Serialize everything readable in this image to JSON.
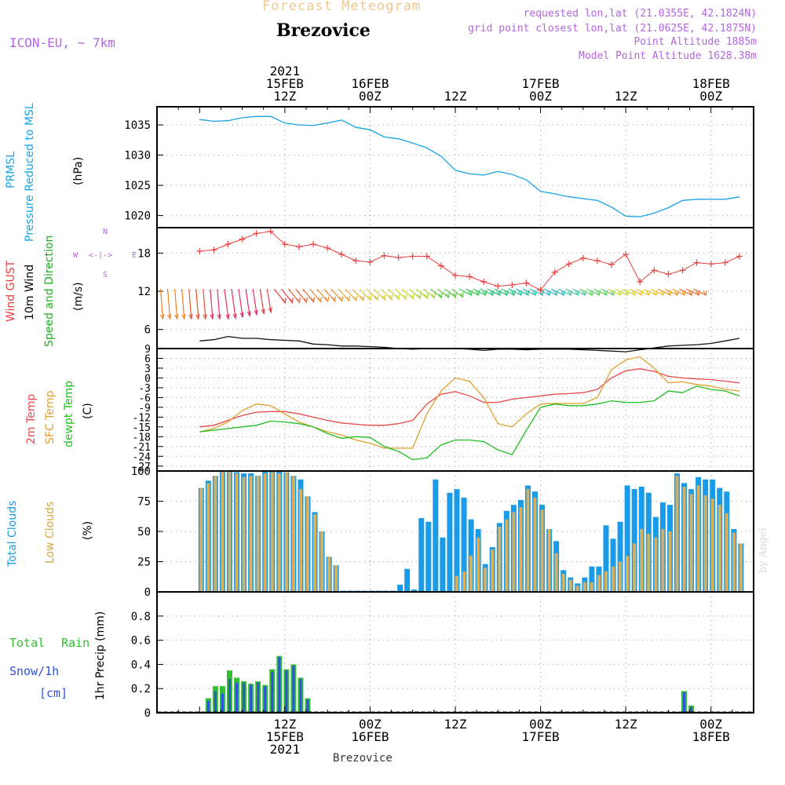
{
  "header": {
    "forecast_title": "Forecast Meteogram",
    "station": "Brezovice",
    "model": "ICON-EU, ~ 7km",
    "requested": "requested lon,lat (21.0355E, 42.1824N)",
    "grid_point": "grid point closest lon,lat (21.0625E, 42.1875N)",
    "point_altitude": "Point Altitude 1885m",
    "model_altitude": "Model Point Altitude 1628.38m",
    "credit": "by Angel",
    "bottom_station": "Brezovice"
  },
  "colors": {
    "pressure": "#1aa3e8",
    "gust": "#e8403c",
    "wind": "#111111",
    "t2m": "#e84848",
    "tsfc": "#e0a030",
    "dewpt": "#20c020",
    "total_clouds": "#1a9be8",
    "low_clouds": "#d4b060",
    "rain": "#30c030",
    "snow": "#3050e0",
    "label_purple": "#b266e0",
    "forecast_title": "#f0c890"
  },
  "time_axis": {
    "top_labels": [
      {
        "t": 12,
        "lines": [
          "2021",
          "15FEB",
          "12Z"
        ]
      },
      {
        "t": 24,
        "lines": [
          "16FEB",
          "00Z"
        ]
      },
      {
        "t": 36,
        "lines": [
          "12Z"
        ]
      },
      {
        "t": 48,
        "lines": [
          "17FEB",
          "00Z"
        ]
      },
      {
        "t": 60,
        "lines": [
          "12Z"
        ]
      },
      {
        "t": 72,
        "lines": [
          "18FEB",
          "00Z"
        ]
      }
    ],
    "bottom_labels": [
      {
        "t": 12,
        "lines": [
          "12Z",
          "15FEB",
          "2021"
        ]
      },
      {
        "t": 24,
        "lines": [
          "00Z",
          "16FEB"
        ]
      },
      {
        "t": 36,
        "lines": [
          "12Z"
        ]
      },
      {
        "t": 48,
        "lines": [
          "00Z",
          "17FEB"
        ]
      },
      {
        "t": 60,
        "lines": [
          "12Z"
        ]
      },
      {
        "t": 72,
        "lines": [
          "00Z",
          "18FEB"
        ]
      }
    ]
  },
  "panels": {
    "pressure": {
      "labels": [
        "PRMSL",
        "Pressure Reduced to MSL",
        "(hPa)"
      ],
      "ticks": [
        "1020",
        "1025",
        "1030",
        "1035"
      ]
    },
    "wind": {
      "labels": [
        "Wind GUST",
        "10m Wind",
        "Speed and Direction",
        "(m/s)"
      ],
      "ticks": [
        "6",
        "12",
        "18"
      ],
      "compass": [
        "N",
        "S",
        "W",
        "E",
        "<-|->"
      ]
    },
    "temp": {
      "labels": [
        "2m Temp",
        "SFC Temp",
        "dewpt Temp",
        "(C)"
      ],
      "ticks": [
        "-27",
        "-24",
        "-21",
        "-18",
        "-15",
        "-12",
        "-9",
        "-6",
        "-3",
        "0",
        "3",
        "6",
        "9"
      ]
    },
    "clouds": {
      "labels": [
        "Total Clouds",
        "Low Clouds",
        "(%)"
      ],
      "ticks": [
        "0",
        "25",
        "50",
        "75",
        "100"
      ]
    },
    "precip": {
      "labels": [
        "Total",
        "Rain",
        "Snow/1h",
        "[cm]",
        "1hr Precip (mm)"
      ],
      "ticks": [
        "0",
        "0.2",
        "0.4",
        "0.6",
        "0.8"
      ]
    }
  },
  "chart_data": [
    {
      "type": "line",
      "name": "pressure",
      "ylim": [
        1018,
        1038
      ],
      "x": [
        0,
        2,
        4,
        6,
        8,
        10,
        12,
        14,
        16,
        18,
        20,
        22,
        24,
        26,
        28,
        30,
        32,
        34,
        36,
        38,
        40,
        42,
        44,
        46,
        48,
        50,
        52,
        54,
        56,
        58,
        60,
        62,
        64,
        66,
        68,
        70,
        72,
        74,
        76
      ],
      "series": [
        {
          "name": "PRMSL",
          "values": [
            1035.9,
            1035.6,
            1035.7,
            1036.2,
            1036.4,
            1036.4,
            1035.3,
            1035.0,
            1034.9,
            1035.3,
            1035.8,
            1034.6,
            1034.2,
            1033.0,
            1032.7,
            1032.0,
            1031.2,
            1029.8,
            1027.5,
            1026.9,
            1026.7,
            1027.3,
            1026.8,
            1025.9,
            1024.0,
            1023.6,
            1023.1,
            1022.8,
            1022.5,
            1021.4,
            1019.9,
            1019.8,
            1020.4,
            1021.3,
            1022.5,
            1022.7,
            1022.7,
            1022.7,
            1023.1
          ]
        }
      ]
    },
    {
      "type": "line",
      "name": "wind",
      "ylim": [
        3,
        22
      ],
      "x": [
        0,
        2,
        4,
        6,
        8,
        10,
        12,
        14,
        16,
        18,
        20,
        22,
        24,
        26,
        28,
        30,
        32,
        34,
        36,
        38,
        40,
        42,
        44,
        46,
        48,
        50,
        52,
        54,
        56,
        58,
        60,
        62,
        64,
        66,
        68,
        70,
        72,
        74,
        76
      ],
      "series": [
        {
          "name": "Wind GUST",
          "values": [
            18.3,
            18.5,
            19.4,
            20.2,
            21.1,
            21.4,
            19.4,
            19.0,
            19.4,
            18.8,
            17.8,
            16.8,
            16.6,
            17.6,
            17.3,
            17.5,
            17.5,
            16.0,
            14.5,
            14.3,
            13.5,
            12.8,
            13.0,
            13.3,
            12.2,
            15.0,
            16.3,
            17.2,
            16.8,
            16.2,
            17.8,
            13.5,
            15.3,
            14.7,
            15.3,
            16.5,
            16.3,
            16.5,
            17.5
          ]
        },
        {
          "name": "10m Wind",
          "values": [
            4.2,
            4.4,
            4.9,
            4.6,
            4.6,
            4.4,
            4.3,
            4.2,
            3.7,
            3.6,
            3.4,
            3.4,
            3.3,
            3.2,
            3.0,
            2.9,
            3.0,
            3.0,
            3.0,
            2.9,
            2.7,
            2.9,
            2.9,
            2.8,
            2.9,
            2.9,
            2.9,
            2.8,
            2.7,
            2.6,
            2.5,
            2.8,
            3.1,
            3.4,
            3.5,
            3.6,
            3.8,
            4.2,
            4.6
          ]
        }
      ]
    },
    {
      "type": "line",
      "name": "temperature",
      "ylim": [
        -28.5,
        9
      ],
      "x": [
        0,
        2,
        4,
        6,
        8,
        10,
        12,
        14,
        16,
        18,
        20,
        22,
        24,
        26,
        28,
        30,
        32,
        34,
        36,
        38,
        40,
        42,
        44,
        46,
        48,
        50,
        52,
        54,
        56,
        58,
        60,
        62,
        64,
        66,
        68,
        70,
        72,
        74,
        76
      ],
      "series": [
        {
          "name": "2m Temp",
          "values": [
            -15.0,
            -14.5,
            -13.0,
            -11.5,
            -10.5,
            -10.3,
            -10.3,
            -11.0,
            -12.0,
            -13.0,
            -13.8,
            -14.2,
            -14.5,
            -14.5,
            -14.0,
            -13.0,
            -8.0,
            -5.0,
            -4.2,
            -5.5,
            -7.5,
            -7.5,
            -6.5,
            -6.0,
            -5.5,
            -5.0,
            -4.8,
            -4.5,
            -3.5,
            0.0,
            2.2,
            2.8,
            2.0,
            0.5,
            0.0,
            -0.3,
            -0.5,
            -1.0,
            -1.5
          ]
        },
        {
          "name": "SFC Temp",
          "values": [
            -16.5,
            -15.5,
            -13.5,
            -10.0,
            -8.0,
            -8.5,
            -11.0,
            -13.5,
            -15.0,
            -16.5,
            -17.5,
            -19.0,
            -20.0,
            -21.5,
            -21.5,
            -21.5,
            -11.0,
            -4.0,
            0.0,
            -1.0,
            -6.0,
            -14.0,
            -15.0,
            -11.0,
            -8.0,
            -7.8,
            -7.8,
            -7.8,
            -6.0,
            2.5,
            5.5,
            6.5,
            3.0,
            -1.5,
            -1.2,
            -2.0,
            -2.5,
            -3.5,
            -4.0
          ]
        },
        {
          "name": "dewpt Temp",
          "values": [
            -16.5,
            -16.0,
            -15.5,
            -15.0,
            -14.5,
            -13.2,
            -13.5,
            -14.0,
            -15.0,
            -17.0,
            -18.5,
            -18.0,
            -18.2,
            -21.0,
            -22.5,
            -25.0,
            -24.5,
            -20.5,
            -19.0,
            -19.0,
            -19.5,
            -22.0,
            -23.5,
            -16.0,
            -9.0,
            -8.0,
            -8.5,
            -8.5,
            -8.0,
            -7.0,
            -7.5,
            -7.5,
            -7.0,
            -4.0,
            -4.5,
            -2.5,
            -3.5,
            -4.0,
            -5.5
          ]
        }
      ]
    },
    {
      "type": "bar",
      "name": "clouds",
      "ylim": [
        0,
        100
      ],
      "x": [
        0,
        1,
        2,
        3,
        4,
        5,
        6,
        7,
        8,
        9,
        10,
        11,
        12,
        13,
        14,
        15,
        16,
        17,
        18,
        19,
        20,
        21,
        22,
        23,
        24,
        25,
        26,
        27,
        28,
        29,
        30,
        31,
        32,
        33,
        34,
        35,
        36,
        37,
        38,
        39,
        40,
        41,
        42,
        43,
        44,
        45,
        46,
        47,
        48,
        49,
        50,
        51,
        52,
        53,
        54,
        55,
        56,
        57,
        58,
        59,
        60,
        61,
        62,
        63,
        64,
        65,
        66,
        67,
        68,
        69,
        70,
        71,
        72,
        73,
        74,
        75,
        76
      ],
      "series": [
        {
          "name": "Total Clouds",
          "values": [
            86,
            92,
            96,
            100,
            100,
            99,
            98,
            98,
            96,
            100,
            100,
            100,
            99,
            96,
            93,
            79,
            66,
            50,
            29,
            22,
            0,
            0,
            0,
            0,
            0,
            0,
            0,
            0,
            6,
            19,
            2,
            61,
            58,
            93,
            45,
            82,
            85,
            78,
            60,
            52,
            23,
            37,
            57,
            67,
            72,
            76,
            88,
            83,
            72,
            52,
            42,
            18,
            12,
            7,
            12,
            21,
            21,
            55,
            44,
            58,
            88,
            85,
            87,
            82,
            62,
            74,
            72,
            98,
            90,
            85,
            95,
            93,
            93,
            86,
            83,
            52,
            40
          ]
        },
        {
          "name": "Low Clouds",
          "values": [
            86,
            90,
            96,
            100,
            100,
            98,
            95,
            96,
            96,
            98,
            99,
            98,
            99,
            96,
            85,
            79,
            64,
            50,
            29,
            22,
            0,
            0,
            0,
            0,
            0,
            0,
            0,
            0,
            0,
            0,
            0,
            0,
            0,
            0,
            0,
            0,
            13,
            17,
            30,
            45,
            20,
            35,
            54,
            60,
            66,
            70,
            85,
            78,
            68,
            52,
            32,
            15,
            10,
            5,
            8,
            8,
            14,
            17,
            21,
            25,
            30,
            40,
            52,
            48,
            45,
            52,
            50,
            96,
            87,
            81,
            88,
            80,
            77,
            72,
            65,
            49,
            40
          ]
        }
      ]
    },
    {
      "type": "bar",
      "name": "precipitation",
      "ylim": [
        0,
        1.0
      ],
      "x": [
        0,
        1,
        2,
        3,
        4,
        5,
        6,
        7,
        8,
        9,
        10,
        11,
        12,
        13,
        14,
        15,
        16,
        17,
        18,
        19,
        20,
        21,
        22,
        23,
        24,
        25,
        26,
        27,
        28,
        29,
        30,
        31,
        32,
        33,
        34,
        35,
        36,
        37,
        38,
        39,
        40,
        41,
        42,
        43,
        44,
        45,
        46,
        47,
        48,
        49,
        50,
        51,
        52,
        53,
        54,
        55,
        56,
        57,
        58,
        59,
        60,
        61,
        62,
        63,
        64,
        65,
        66,
        67,
        68,
        69,
        70,
        71,
        72,
        73,
        74,
        75,
        76
      ],
      "series": [
        {
          "name": "Total Rain",
          "values": [
            0,
            0.12,
            0.22,
            0.22,
            0.35,
            0.29,
            0.26,
            0.24,
            0.26,
            0.23,
            0.36,
            0.47,
            0.36,
            0.4,
            0.29,
            0.12,
            0,
            0,
            0,
            0,
            0,
            0,
            0,
            0,
            0,
            0,
            0,
            0,
            0,
            0,
            0,
            0,
            0,
            0,
            0,
            0,
            0,
            0,
            0,
            0,
            0,
            0,
            0,
            0,
            0,
            0,
            0,
            0,
            0,
            0,
            0,
            0,
            0,
            0,
            0,
            0,
            0,
            0,
            0,
            0,
            0,
            0,
            0,
            0,
            0,
            0,
            0,
            0,
            0.18,
            0.06,
            0,
            0,
            0.01,
            0,
            0,
            0,
            0
          ]
        },
        {
          "name": "Snow/1h",
          "values": [
            0,
            0.1,
            0.18,
            0.16,
            0.28,
            0.25,
            0.25,
            0.23,
            0.25,
            0.22,
            0.34,
            0.46,
            0.35,
            0.39,
            0.28,
            0.11,
            0,
            0,
            0,
            0,
            0,
            0,
            0,
            0,
            0,
            0,
            0,
            0,
            0,
            0,
            0,
            0,
            0,
            0,
            0,
            0,
            0,
            0,
            0,
            0,
            0,
            0,
            0,
            0,
            0,
            0,
            0,
            0,
            0,
            0,
            0,
            0,
            0,
            0,
            0,
            0,
            0,
            0,
            0,
            0,
            0,
            0,
            0,
            0,
            0,
            0,
            0,
            0,
            0.17,
            0.05,
            0,
            0,
            0.01,
            0,
            0,
            0,
            0
          ]
        }
      ]
    }
  ]
}
